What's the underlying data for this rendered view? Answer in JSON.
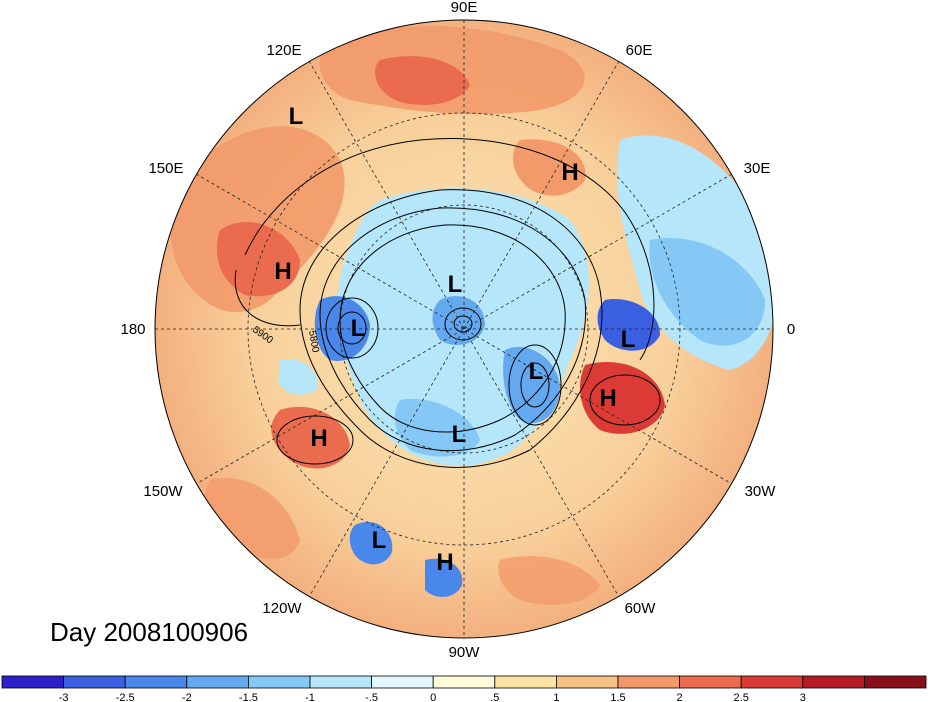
{
  "longitude_labels": [
    {
      "text": "90E",
      "lon": 90
    },
    {
      "text": "60E",
      "lon": 60
    },
    {
      "text": "30E",
      "lon": 30
    },
    {
      "text": "0",
      "lon": 0
    },
    {
      "text": "30W",
      "lon": -30
    },
    {
      "text": "60W",
      "lon": -60
    },
    {
      "text": "90W",
      "lon": -90
    },
    {
      "text": "120W",
      "lon": -120
    },
    {
      "text": "150W",
      "lon": -150
    },
    {
      "text": "180",
      "lon": 180
    },
    {
      "text": "150E",
      "lon": 150
    },
    {
      "text": "120E",
      "lon": 120
    }
  ],
  "pressure_centers": [
    {
      "type": "L",
      "label": "L",
      "where": "Siberia coast"
    },
    {
      "type": "H",
      "label": "H",
      "where": "Caspian region"
    },
    {
      "type": "H",
      "label": "H",
      "where": "Western Pacific"
    },
    {
      "type": "L",
      "label": "L",
      "where": "Arctic Ocean"
    },
    {
      "type": "L",
      "label": "L",
      "where": "Bering Sea"
    },
    {
      "type": "L",
      "label": "L",
      "where": "Europe"
    },
    {
      "type": "L",
      "label": "L",
      "where": "Baffin Bay"
    },
    {
      "type": "H",
      "label": "H",
      "where": "North Atlantic"
    },
    {
      "type": "H",
      "label": "H",
      "where": "Gulf of Alaska"
    },
    {
      "type": "L",
      "label": "L",
      "where": "Canada"
    },
    {
      "type": "L",
      "label": "L",
      "where": "Eastern Pacific"
    },
    {
      "type": "H",
      "label": "H",
      "where": "Mexico"
    }
  ],
  "contour_labels": [
    "5900",
    "5800"
  ],
  "day_label": "Day 2008100906",
  "colorbar": {
    "colors": [
      "#2d1fc9",
      "#3a5fe0",
      "#4a87ea",
      "#64a8f0",
      "#86c8f5",
      "#b6e6fa",
      "#e1f6fd",
      "#fefcd8",
      "#fbe3a4",
      "#f7c183",
      "#f29a6a",
      "#ea6b4e",
      "#db3a35",
      "#b51c27",
      "#8a0f1c"
    ],
    "tick_labels": [
      "-3",
      "-2.5",
      "-2",
      "-1.5",
      "-1",
      "-.5",
      "0",
      ".5",
      "1",
      "1.5",
      "2",
      "2.5",
      "3"
    ]
  }
}
